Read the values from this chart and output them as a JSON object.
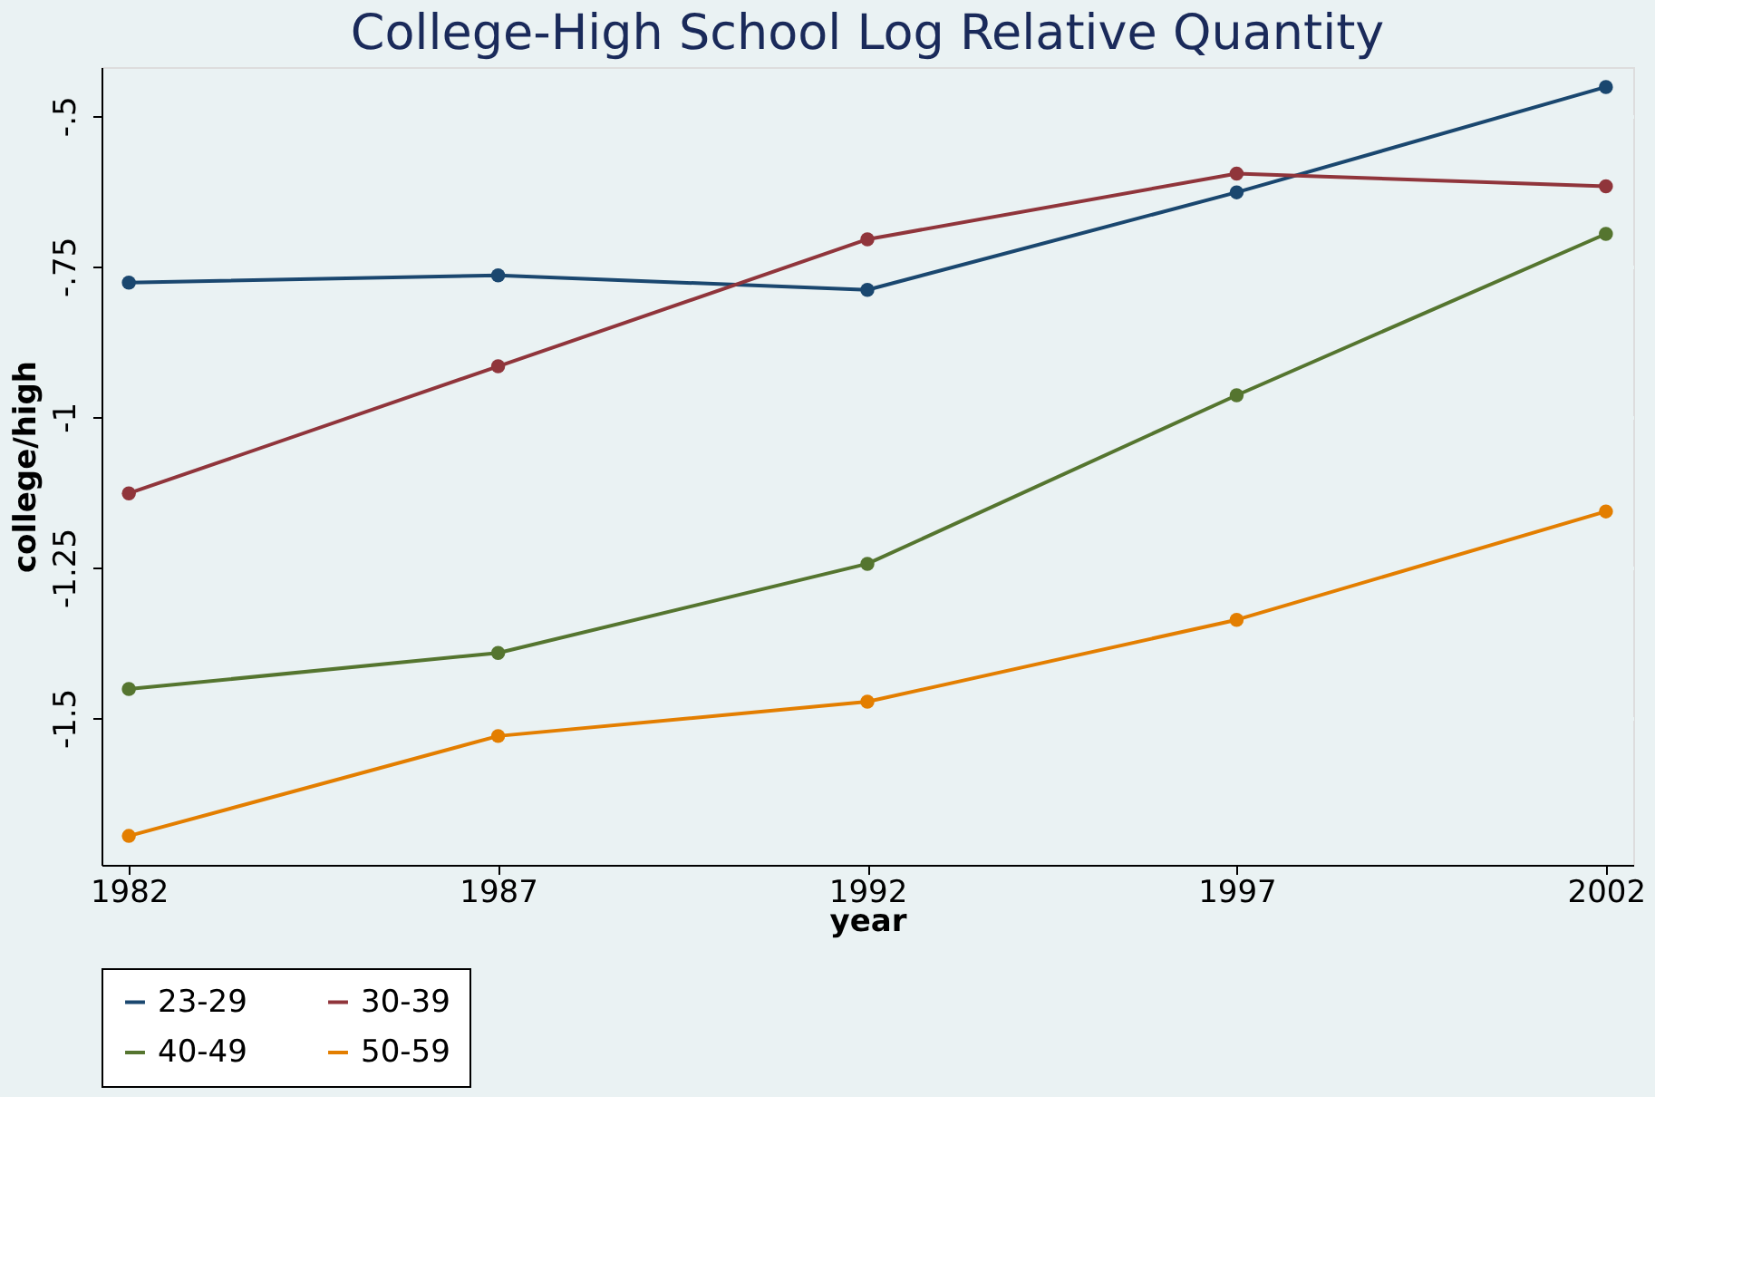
{
  "chart_data": {
    "type": "line",
    "title": "College-High School Log Relative Quantity",
    "xlabel": "year",
    "ylabel": "college/high",
    "x": [
      1982,
      1987,
      1992,
      1997,
      2002
    ],
    "series": [
      {
        "name": "23-29",
        "color": "#1a476f",
        "values": [
          -0.777,
          -0.765,
          -0.789,
          -0.627,
          -0.452
        ]
      },
      {
        "name": "30-39",
        "color": "#90353b",
        "values": [
          -1.127,
          -0.916,
          -0.705,
          -0.596,
          -0.617
        ]
      },
      {
        "name": "40-49",
        "color": "#55752f",
        "values": [
          -1.452,
          -1.392,
          -1.244,
          -0.964,
          -0.696
        ]
      },
      {
        "name": "50-59",
        "color": "#e37e00",
        "values": [
          -1.696,
          -1.53,
          -1.473,
          -1.337,
          -1.157
        ]
      }
    ],
    "xlim": [
      1981.63,
      2002.37
    ],
    "xticks": [
      1982,
      1987,
      1992,
      1997,
      2002
    ],
    "ylim": [
      -1.744,
      -0.419
    ],
    "yticks": [
      {
        "value": -0.5,
        "label": "-.5"
      },
      {
        "value": -0.75,
        "label": "-.75"
      },
      {
        "value": -1,
        "label": "-1"
      },
      {
        "value": -1.25,
        "label": "-1.25"
      },
      {
        "value": -1.5,
        "label": "-1.5"
      }
    ],
    "grid": "y",
    "legend": "bottom",
    "marker": "circle",
    "line_style": "solid"
  }
}
